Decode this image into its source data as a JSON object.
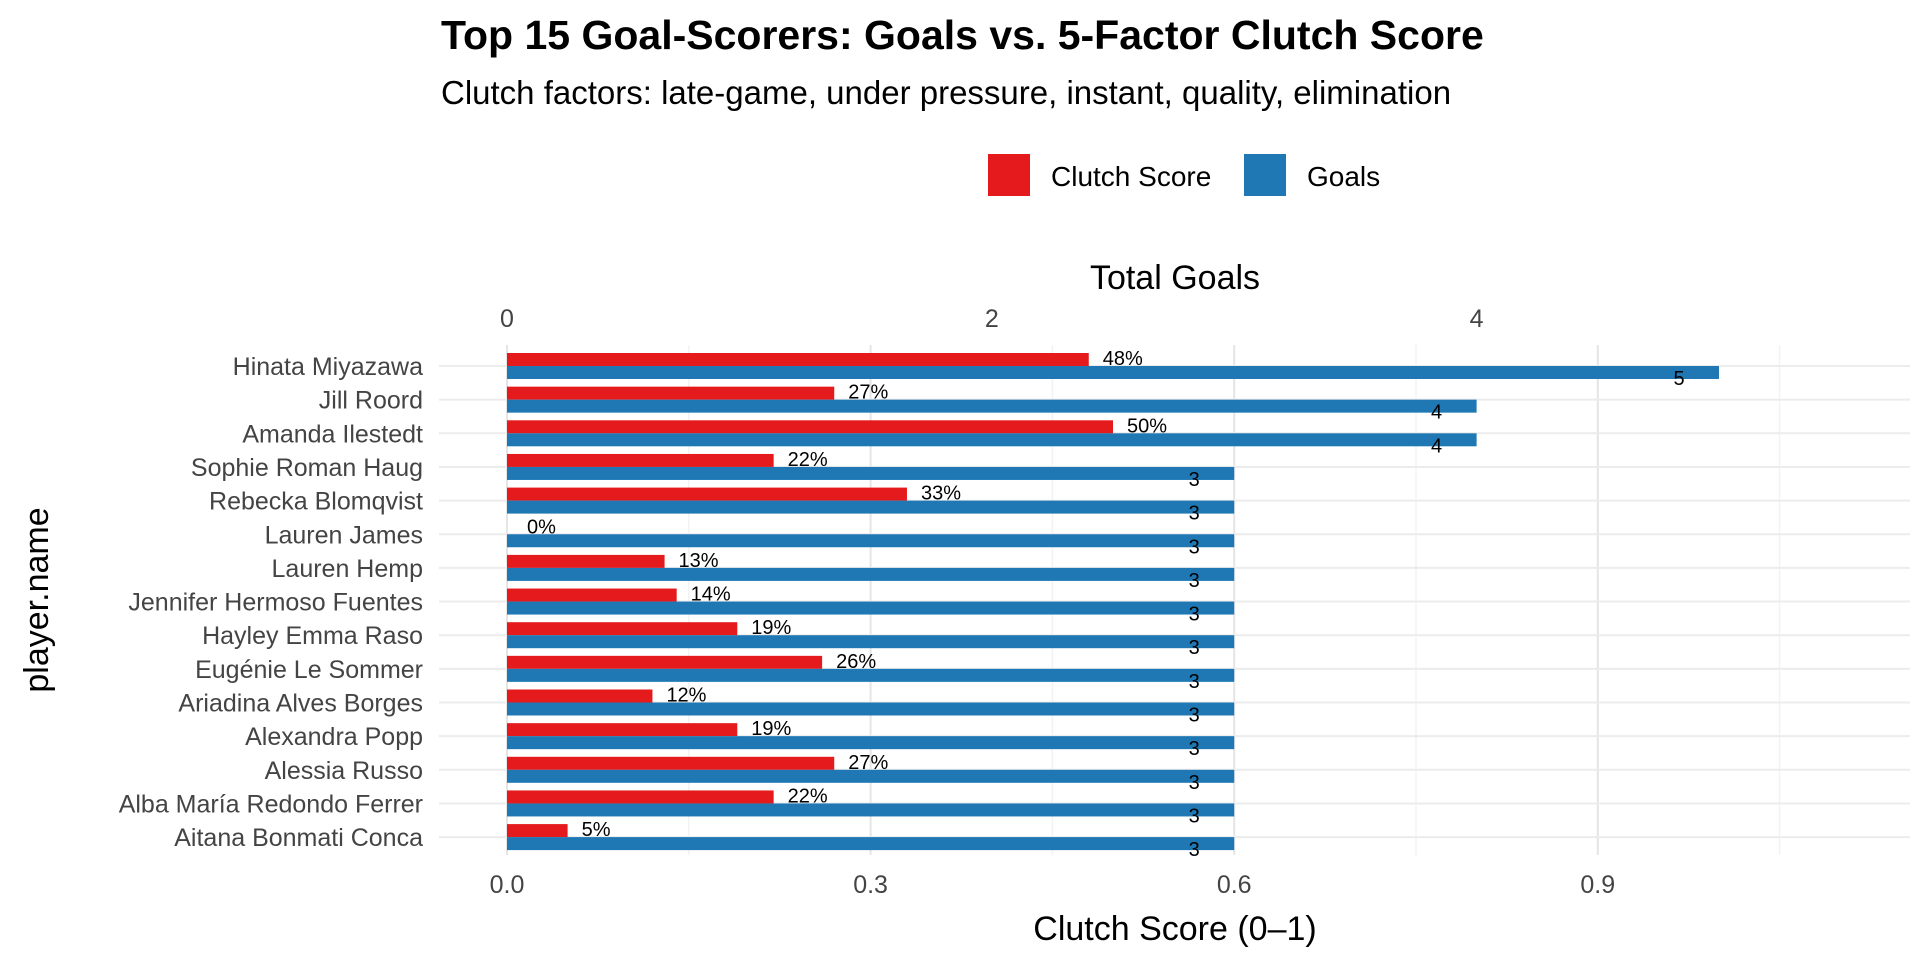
{
  "chart_data": {
    "type": "bar",
    "title": "Top 15 Goal-Scorers: Goals vs. 5-Factor Clutch Score",
    "subtitle": "Clutch factors: late-game, under pressure, instant, quality, elimination",
    "ylabel": "player.name",
    "xlabel_bottom": "Clutch Score (0–1)",
    "xlabel_top": "Total Goals",
    "legend_position": "top",
    "grid": true,
    "bottom_axis": {
      "min": 0,
      "max": 1.1,
      "ticks": [
        0.0,
        0.3,
        0.6,
        0.9
      ],
      "tick_labels": [
        "0.0",
        "0.3",
        "0.6",
        "0.9"
      ]
    },
    "top_axis": {
      "min": 0,
      "max": 5.5,
      "ticks": [
        0,
        2,
        4
      ],
      "tick_labels": [
        "0",
        "2",
        "4"
      ]
    },
    "categories": [
      "Hinata Miyazawa",
      "Jill Roord",
      "Amanda Ilestedt",
      "Sophie Roman Haug",
      "Rebecka Blomqvist",
      "Lauren James",
      "Lauren Hemp",
      "Jennifer Hermoso Fuentes",
      "Hayley Emma Raso",
      "Eugénie Le Sommer",
      "Ariadina Alves Borges",
      "Alexandra Popp",
      "Alessia Russo",
      "Alba María Redondo Ferrer",
      "Aitana Bonmati Conca"
    ],
    "series": [
      {
        "name": "Clutch Score",
        "color": "#e41a1c",
        "axis": "bottom",
        "values": [
          0.48,
          0.27,
          0.5,
          0.22,
          0.33,
          0.0,
          0.13,
          0.14,
          0.19,
          0.26,
          0.12,
          0.19,
          0.27,
          0.22,
          0.05
        ],
        "labels": [
          "48%",
          "27%",
          "50%",
          "22%",
          "33%",
          "0%",
          "13%",
          "14%",
          "19%",
          "26%",
          "12%",
          "19%",
          "27%",
          "22%",
          "5%"
        ]
      },
      {
        "name": "Goals",
        "color": "#1f78b4",
        "axis": "top",
        "values": [
          5,
          4,
          4,
          3,
          3,
          3,
          3,
          3,
          3,
          3,
          3,
          3,
          3,
          3,
          3
        ],
        "labels": [
          "5",
          "4",
          "4",
          "3",
          "3",
          "3",
          "3",
          "3",
          "3",
          "3",
          "3",
          "3",
          "3",
          "3",
          "3"
        ]
      }
    ]
  }
}
